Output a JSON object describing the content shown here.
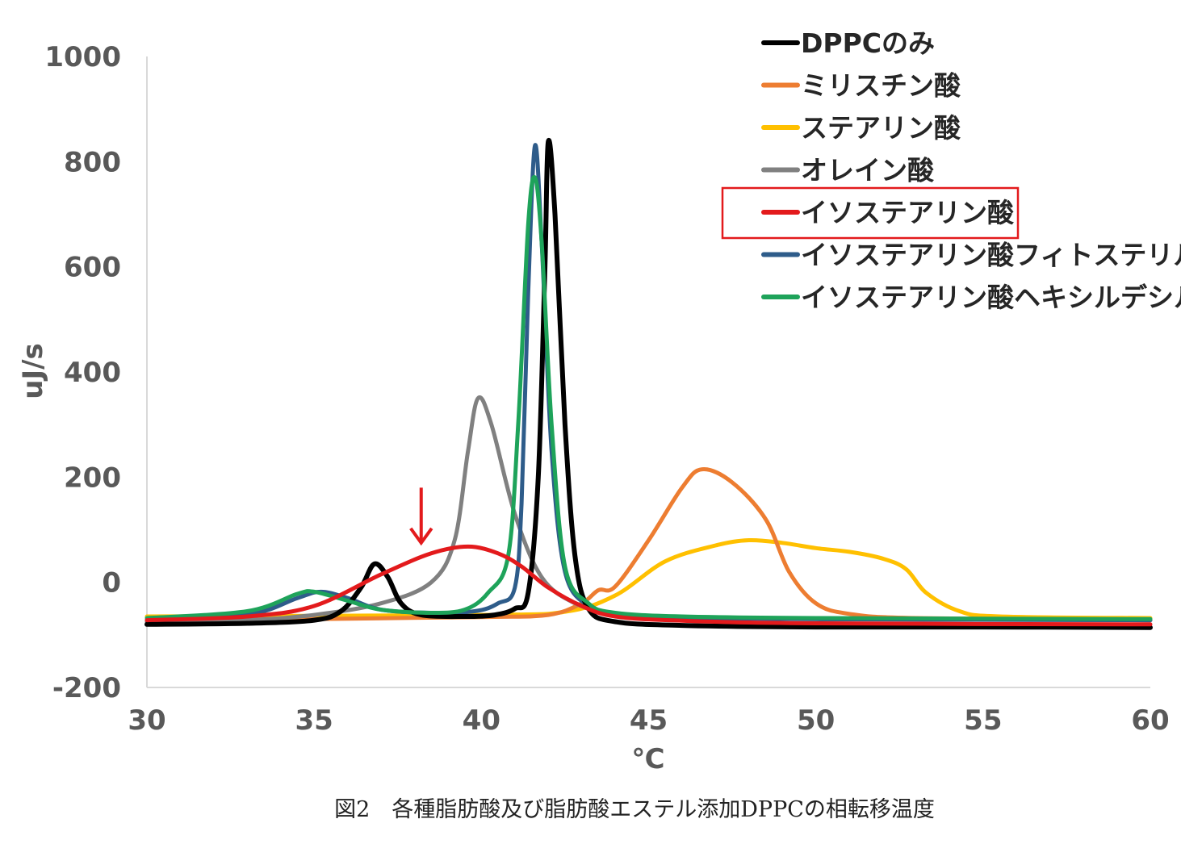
{
  "chart_data": {
    "type": "line",
    "title": "",
    "caption": "図2　各種脂肪酸及び脂肪酸エステル添加DPPCの相転移温度",
    "xlabel": "℃",
    "ylabel": "uJ/s",
    "xlim": [
      30,
      60
    ],
    "ylim": [
      -200,
      1000
    ],
    "xticks": [
      30,
      35,
      40,
      45,
      50,
      55,
      60
    ],
    "yticks": [
      -200,
      0,
      200,
      400,
      600,
      800,
      1000
    ],
    "grid": false,
    "legend_position": "top-right",
    "highlighted_series": "イソステアリン酸",
    "annotation": {
      "type": "arrow-down",
      "x": 38.2,
      "y_top": 180,
      "y_bottom": 75,
      "color": "#e31a1c"
    },
    "series": [
      {
        "name": "DPPCのみ",
        "color": "#000000",
        "points": [
          [
            30,
            -80
          ],
          [
            33,
            -78
          ],
          [
            35,
            -72
          ],
          [
            35.8,
            -55
          ],
          [
            36.4,
            -10
          ],
          [
            36.8,
            35
          ],
          [
            37.2,
            10
          ],
          [
            37.6,
            -40
          ],
          [
            38.2,
            -62
          ],
          [
            39.5,
            -65
          ],
          [
            40.4,
            -62
          ],
          [
            41.0,
            -50
          ],
          [
            41.4,
            -20
          ],
          [
            41.7,
            200
          ],
          [
            41.9,
            600
          ],
          [
            42.0,
            838
          ],
          [
            42.2,
            700
          ],
          [
            42.5,
            300
          ],
          [
            42.8,
            50
          ],
          [
            43.2,
            -50
          ],
          [
            44,
            -75
          ],
          [
            46,
            -82
          ],
          [
            50,
            -85
          ],
          [
            55,
            -85
          ],
          [
            60,
            -86
          ]
        ]
      },
      {
        "name": "ミリスチン酸",
        "color": "#ed7d31",
        "points": [
          [
            30,
            -75
          ],
          [
            35,
            -70
          ],
          [
            40,
            -66
          ],
          [
            42,
            -62
          ],
          [
            43,
            -40
          ],
          [
            43.5,
            -15
          ],
          [
            44,
            -8
          ],
          [
            45,
            80
          ],
          [
            46,
            180
          ],
          [
            46.6,
            215
          ],
          [
            47.5,
            190
          ],
          [
            48.5,
            120
          ],
          [
            49.2,
            20
          ],
          [
            50,
            -40
          ],
          [
            51,
            -60
          ],
          [
            53,
            -68
          ],
          [
            60,
            -72
          ]
        ]
      },
      {
        "name": "ステアリン酸",
        "color": "#ffc000",
        "points": [
          [
            30,
            -65
          ],
          [
            40,
            -62
          ],
          [
            42.5,
            -56
          ],
          [
            44,
            -25
          ],
          [
            45.5,
            40
          ],
          [
            47,
            70
          ],
          [
            48,
            80
          ],
          [
            49,
            75
          ],
          [
            50,
            65
          ],
          [
            51,
            58
          ],
          [
            52,
            45
          ],
          [
            52.7,
            25
          ],
          [
            53.3,
            -20
          ],
          [
            54.3,
            -55
          ],
          [
            55.5,
            -65
          ],
          [
            60,
            -68
          ]
        ]
      },
      {
        "name": "オレイン酸",
        "color": "#808080",
        "points": [
          [
            30,
            -76
          ],
          [
            33,
            -72
          ],
          [
            35,
            -62
          ],
          [
            37,
            -40
          ],
          [
            38.5,
            0
          ],
          [
            39.2,
            80
          ],
          [
            39.6,
            250
          ],
          [
            39.9,
            350
          ],
          [
            40.3,
            300
          ],
          [
            41,
            130
          ],
          [
            41.8,
            10
          ],
          [
            42.8,
            -40
          ],
          [
            44,
            -60
          ],
          [
            46,
            -66
          ],
          [
            50,
            -70
          ],
          [
            60,
            -72
          ]
        ]
      },
      {
        "name": "イソステアリン酸",
        "color": "#e31a1c",
        "points": [
          [
            30,
            -72
          ],
          [
            33,
            -65
          ],
          [
            35,
            -45
          ],
          [
            37,
            15
          ],
          [
            38.5,
            55
          ],
          [
            39.6,
            68
          ],
          [
            40.5,
            55
          ],
          [
            41.2,
            30
          ],
          [
            42,
            -10
          ],
          [
            43,
            -45
          ],
          [
            44,
            -65
          ],
          [
            46,
            -73
          ],
          [
            50,
            -78
          ],
          [
            60,
            -80
          ]
        ]
      },
      {
        "name": "イソステアリン酸フィトステリル",
        "color": "#2e5c8a",
        "points": [
          [
            30,
            -72
          ],
          [
            33,
            -62
          ],
          [
            34.5,
            -30
          ],
          [
            35.2,
            -18
          ],
          [
            36,
            -30
          ],
          [
            37,
            -52
          ],
          [
            38.5,
            -58
          ],
          [
            39.8,
            -55
          ],
          [
            40.5,
            -40
          ],
          [
            41.0,
            -10
          ],
          [
            41.2,
            150
          ],
          [
            41.4,
            550
          ],
          [
            41.6,
            830
          ],
          [
            41.8,
            650
          ],
          [
            42.1,
            250
          ],
          [
            42.5,
            20
          ],
          [
            43.2,
            -45
          ],
          [
            44,
            -62
          ],
          [
            46,
            -68
          ],
          [
            50,
            -70
          ],
          [
            60,
            -72
          ]
        ]
      },
      {
        "name": "イソステアリン酸ヘキシルデシル",
        "color": "#1ea35a",
        "points": [
          [
            30,
            -68
          ],
          [
            33,
            -55
          ],
          [
            34.5,
            -22
          ],
          [
            35.0,
            -18
          ],
          [
            36,
            -35
          ],
          [
            37,
            -52
          ],
          [
            38.5,
            -58
          ],
          [
            39.5,
            -52
          ],
          [
            40.2,
            -20
          ],
          [
            40.8,
            50
          ],
          [
            41.1,
            300
          ],
          [
            41.4,
            680
          ],
          [
            41.6,
            770
          ],
          [
            41.8,
            650
          ],
          [
            42.1,
            300
          ],
          [
            42.5,
            30
          ],
          [
            43.2,
            -40
          ],
          [
            44,
            -58
          ],
          [
            46,
            -65
          ],
          [
            50,
            -68
          ],
          [
            60,
            -70
          ]
        ]
      }
    ]
  }
}
